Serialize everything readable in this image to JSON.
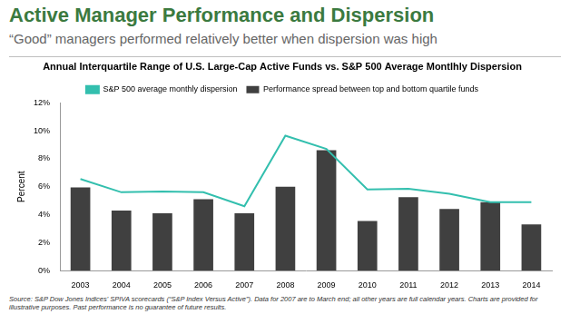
{
  "header": {
    "title": "Active Manager Performance and Dispersion",
    "subtitle": "“Good” managers performed relatively better when dispersion was high"
  },
  "chart_data": {
    "type": "bar",
    "title": "Annual Interquartile Range of U.S. Large-Cap Active Funds vs. S&P 500 Average Montlhly Dispersion",
    "y_label": "Percent",
    "categories": [
      "2003",
      "2004",
      "2005",
      "2006",
      "2007",
      "2008",
      "2009",
      "2010",
      "2011",
      "2012",
      "2013",
      "2014"
    ],
    "series": [
      {
        "name": "Performance spread between top and bottom quartile funds",
        "type": "bar",
        "color": "#404040",
        "values": [
          5.95,
          4.3,
          4.1,
          5.1,
          4.1,
          6.0,
          8.6,
          3.55,
          5.25,
          4.4,
          4.9,
          3.3
        ]
      },
      {
        "name": "S&P 500 average monthly dispersion",
        "type": "line",
        "color": "#33bfae",
        "values": [
          6.55,
          5.6,
          5.65,
          5.6,
          4.6,
          9.65,
          8.7,
          5.8,
          5.85,
          5.5,
          4.9,
          4.9
        ]
      }
    ],
    "ylim": [
      0,
      12
    ],
    "yticks": [
      {
        "value": 0,
        "label": "0%"
      },
      {
        "value": 2,
        "label": "2%"
      },
      {
        "value": 4,
        "label": "4%"
      },
      {
        "value": 6,
        "label": "6%"
      },
      {
        "value": 8,
        "label": "8%"
      },
      {
        "value": 10,
        "label": "10%"
      },
      {
        "value": 12,
        "label": "12%"
      }
    ],
    "grid": false,
    "legend": "top"
  },
  "footer": {
    "source": "Source: S&P Dow Jones Indices' SPIVA scorecards (“S&P Index Versus Active”). Data for 2007 are to March end; all other years are full calendar years. Charts are provided for illustrative purposes. Past performance is no guarantee of future results."
  }
}
